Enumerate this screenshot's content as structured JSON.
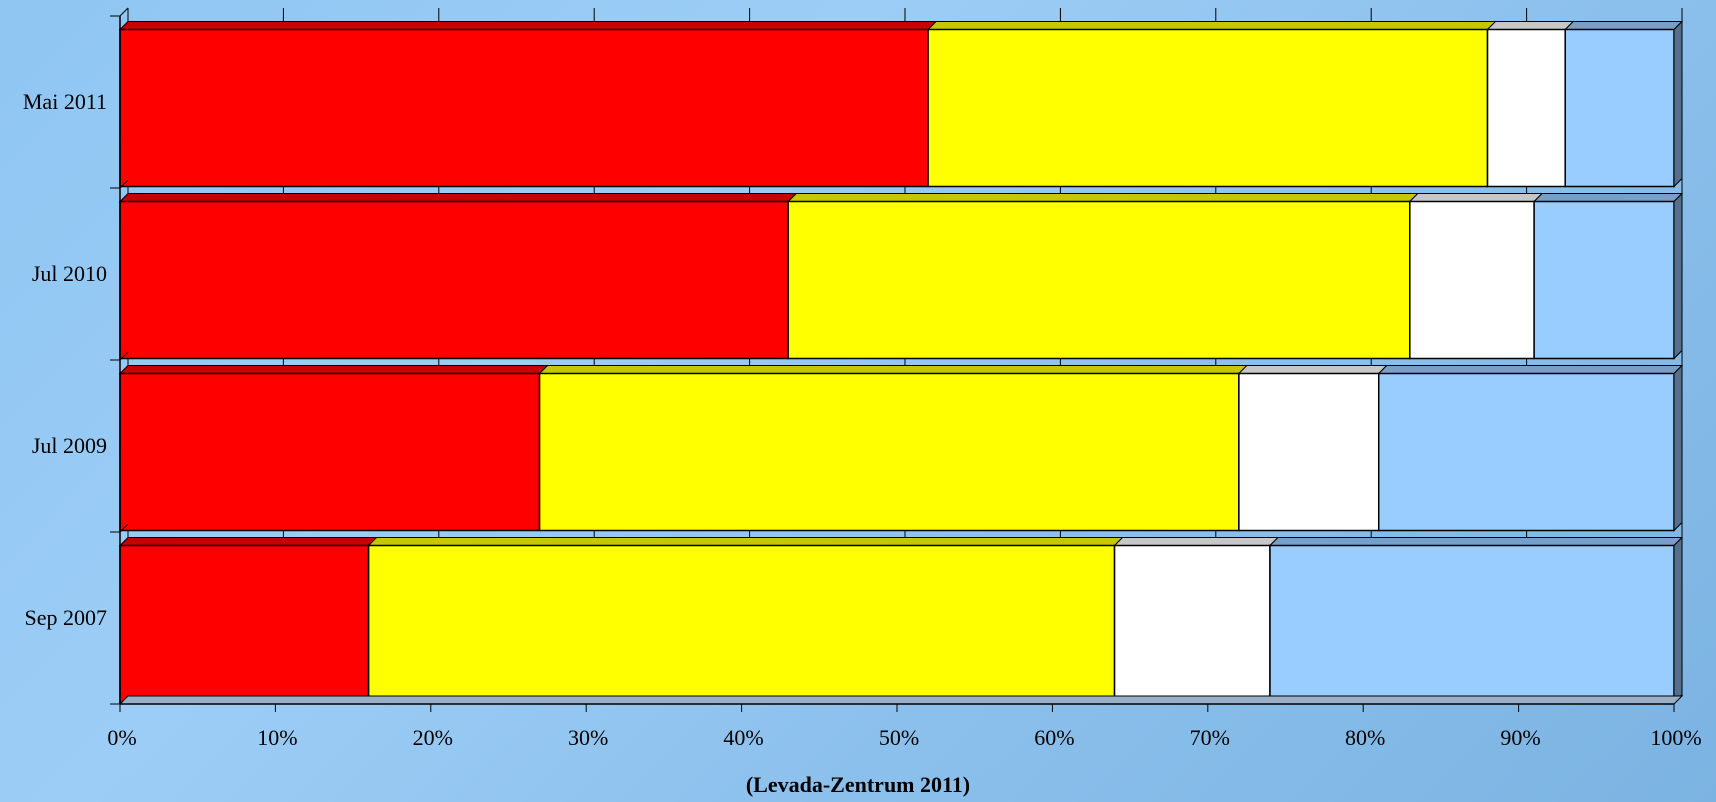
{
  "chart_data": {
    "type": "bar",
    "orientation": "horizontal",
    "stacked": "percent",
    "three_d": true,
    "categories": [
      "Mai 2011",
      "Jul 2010",
      "Jul 2009",
      "Sep 2007"
    ],
    "series": [
      {
        "color": "#ff0000",
        "values": [
          52,
          43,
          27,
          16
        ]
      },
      {
        "color": "#ffff00",
        "values": [
          36,
          40,
          45,
          48
        ]
      },
      {
        "color": "#ffffff",
        "values": [
          5,
          8,
          9,
          10
        ]
      },
      {
        "color": "#99ccff",
        "values": [
          7,
          9,
          19,
          26
        ]
      }
    ],
    "x_ticks": [
      "0%",
      "10%",
      "20%",
      "30%",
      "40%",
      "50%",
      "60%",
      "70%",
      "80%",
      "90%",
      "100%"
    ],
    "xlim": [
      0,
      100
    ],
    "grid": true,
    "legend": "none"
  },
  "source_note": "(Levada-Zentrum 2011)"
}
